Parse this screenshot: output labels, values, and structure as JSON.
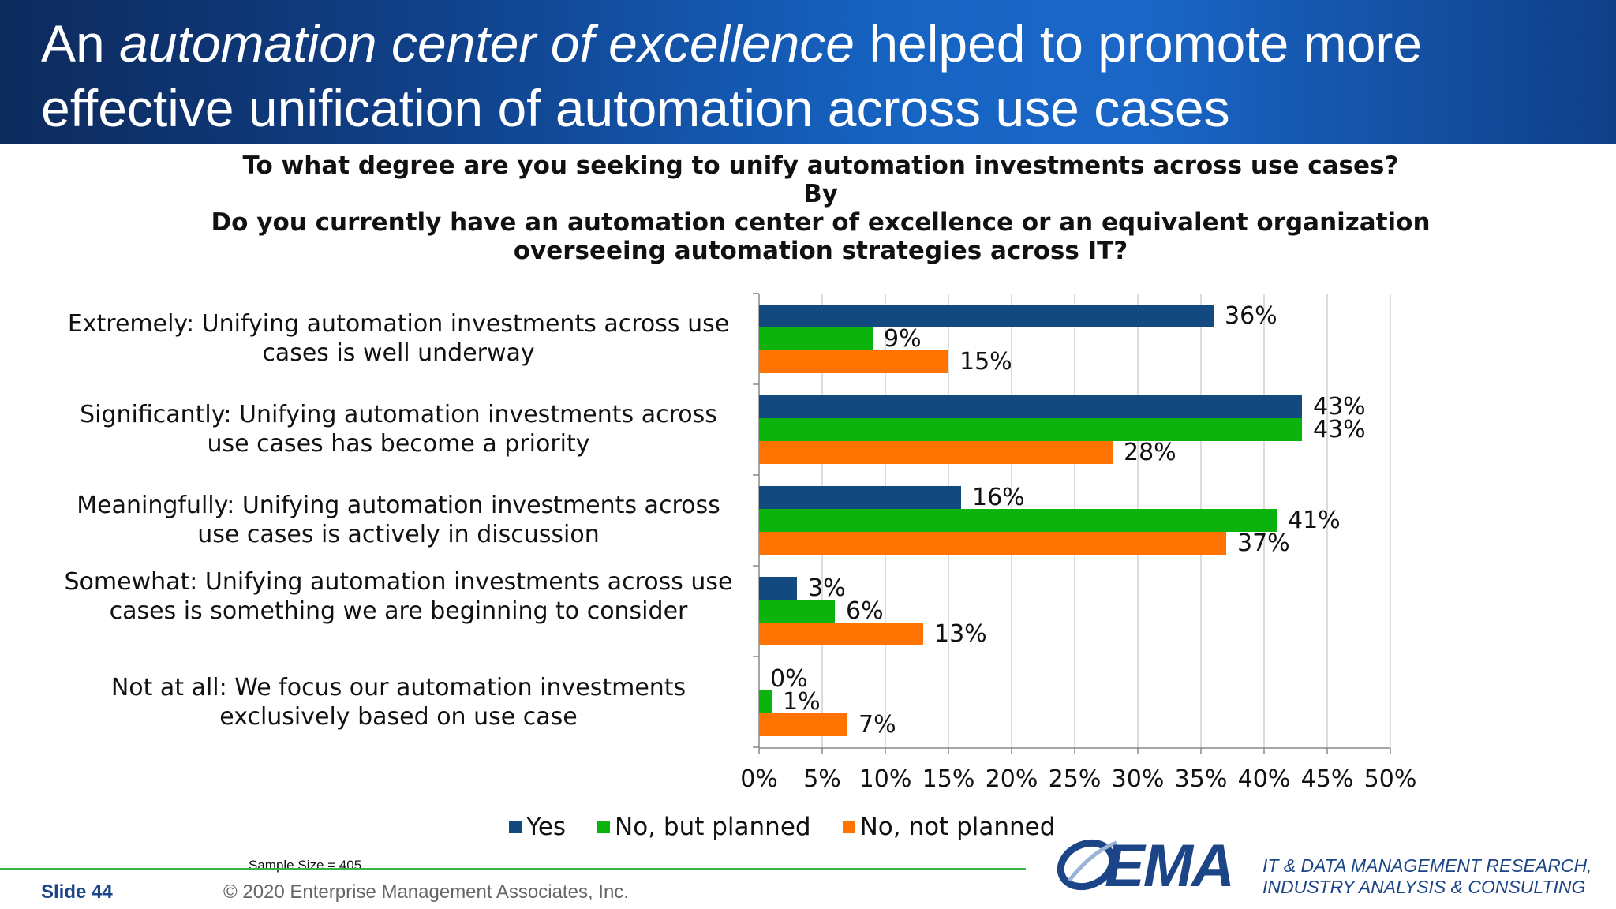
{
  "header": {
    "title_prefix": "An ",
    "title_emphasis": "automation center of excellence",
    "title_suffix": " helped to promote more effective unification of automation across use cases"
  },
  "question": {
    "line1": "To what degree are you seeking to unify automation investments across use cases?",
    "line2": "By",
    "line3": "Do you currently have an automation center of excellence or an equivalent organization overseeing automation strategies across IT?"
  },
  "chart_data": {
    "type": "bar",
    "orientation": "horizontal",
    "categories": [
      "Extremely: Unifying automation investments across use cases is well underway",
      "Significantly: Unifying automation investments across use cases has become a priority",
      "Meaningfully: Unifying automation investments across use cases is actively in discussion",
      "Somewhat: Unifying automation investments across use cases is something we are beginning to consider",
      "Not at all: We focus our automation investments exclusively based on use case"
    ],
    "series": [
      {
        "name": "Yes",
        "color": "#124a80",
        "values": [
          36,
          43,
          16,
          3,
          0
        ]
      },
      {
        "name": "No, but planned",
        "color": "#0db30d",
        "values": [
          9,
          43,
          41,
          6,
          1
        ]
      },
      {
        "name": "No, not planned",
        "color": "#ff7300",
        "values": [
          15,
          28,
          37,
          13,
          7
        ]
      }
    ],
    "xlim": [
      0,
      50
    ],
    "xticks": [
      0,
      5,
      10,
      15,
      20,
      25,
      30,
      35,
      40,
      45,
      50
    ],
    "tick_suffix": "%",
    "value_suffix": "%",
    "grid": "vertical",
    "legend": "bottom"
  },
  "footer": {
    "sample_size": "Sample Size = 405",
    "slide_label": "Slide  44",
    "copyright": "© 2020 Enterprise Management Associates, Inc.",
    "logo_text": "EMA",
    "tagline_line1": "IT & DATA MANAGEMENT RESEARCH,",
    "tagline_line2": "INDUSTRY ANALYSIS & CONSULTING"
  }
}
